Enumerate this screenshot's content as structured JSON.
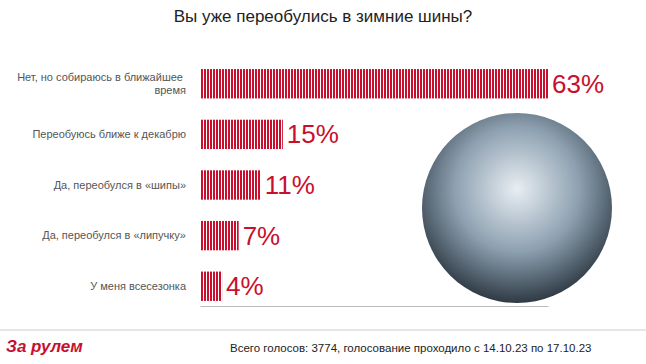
{
  "chart_data": {
    "type": "bar",
    "orientation": "horizontal",
    "title": "Вы уже переобулись в зимние шины?",
    "categories": [
      "Нет, но собираюсь в ближайшее время",
      "Переобуюсь ближе к декабрю",
      "Да, переобулся в «шипы»",
      "Да, переобулся в «липучку»",
      "У меня всесезонка"
    ],
    "values": [
      63,
      15,
      11,
      7,
      4
    ],
    "value_labels": [
      "63%",
      "15%",
      "11%",
      "7%",
      "4%"
    ],
    "color": "#c8102e",
    "xlim": [
      0,
      63
    ],
    "data_labels": true,
    "tick_labels": "y",
    "grid": false,
    "footer": "Всего голосов: 3774, голосование проходило с 14.10.23 по 17.10.23",
    "logo": "За рулем"
  }
}
